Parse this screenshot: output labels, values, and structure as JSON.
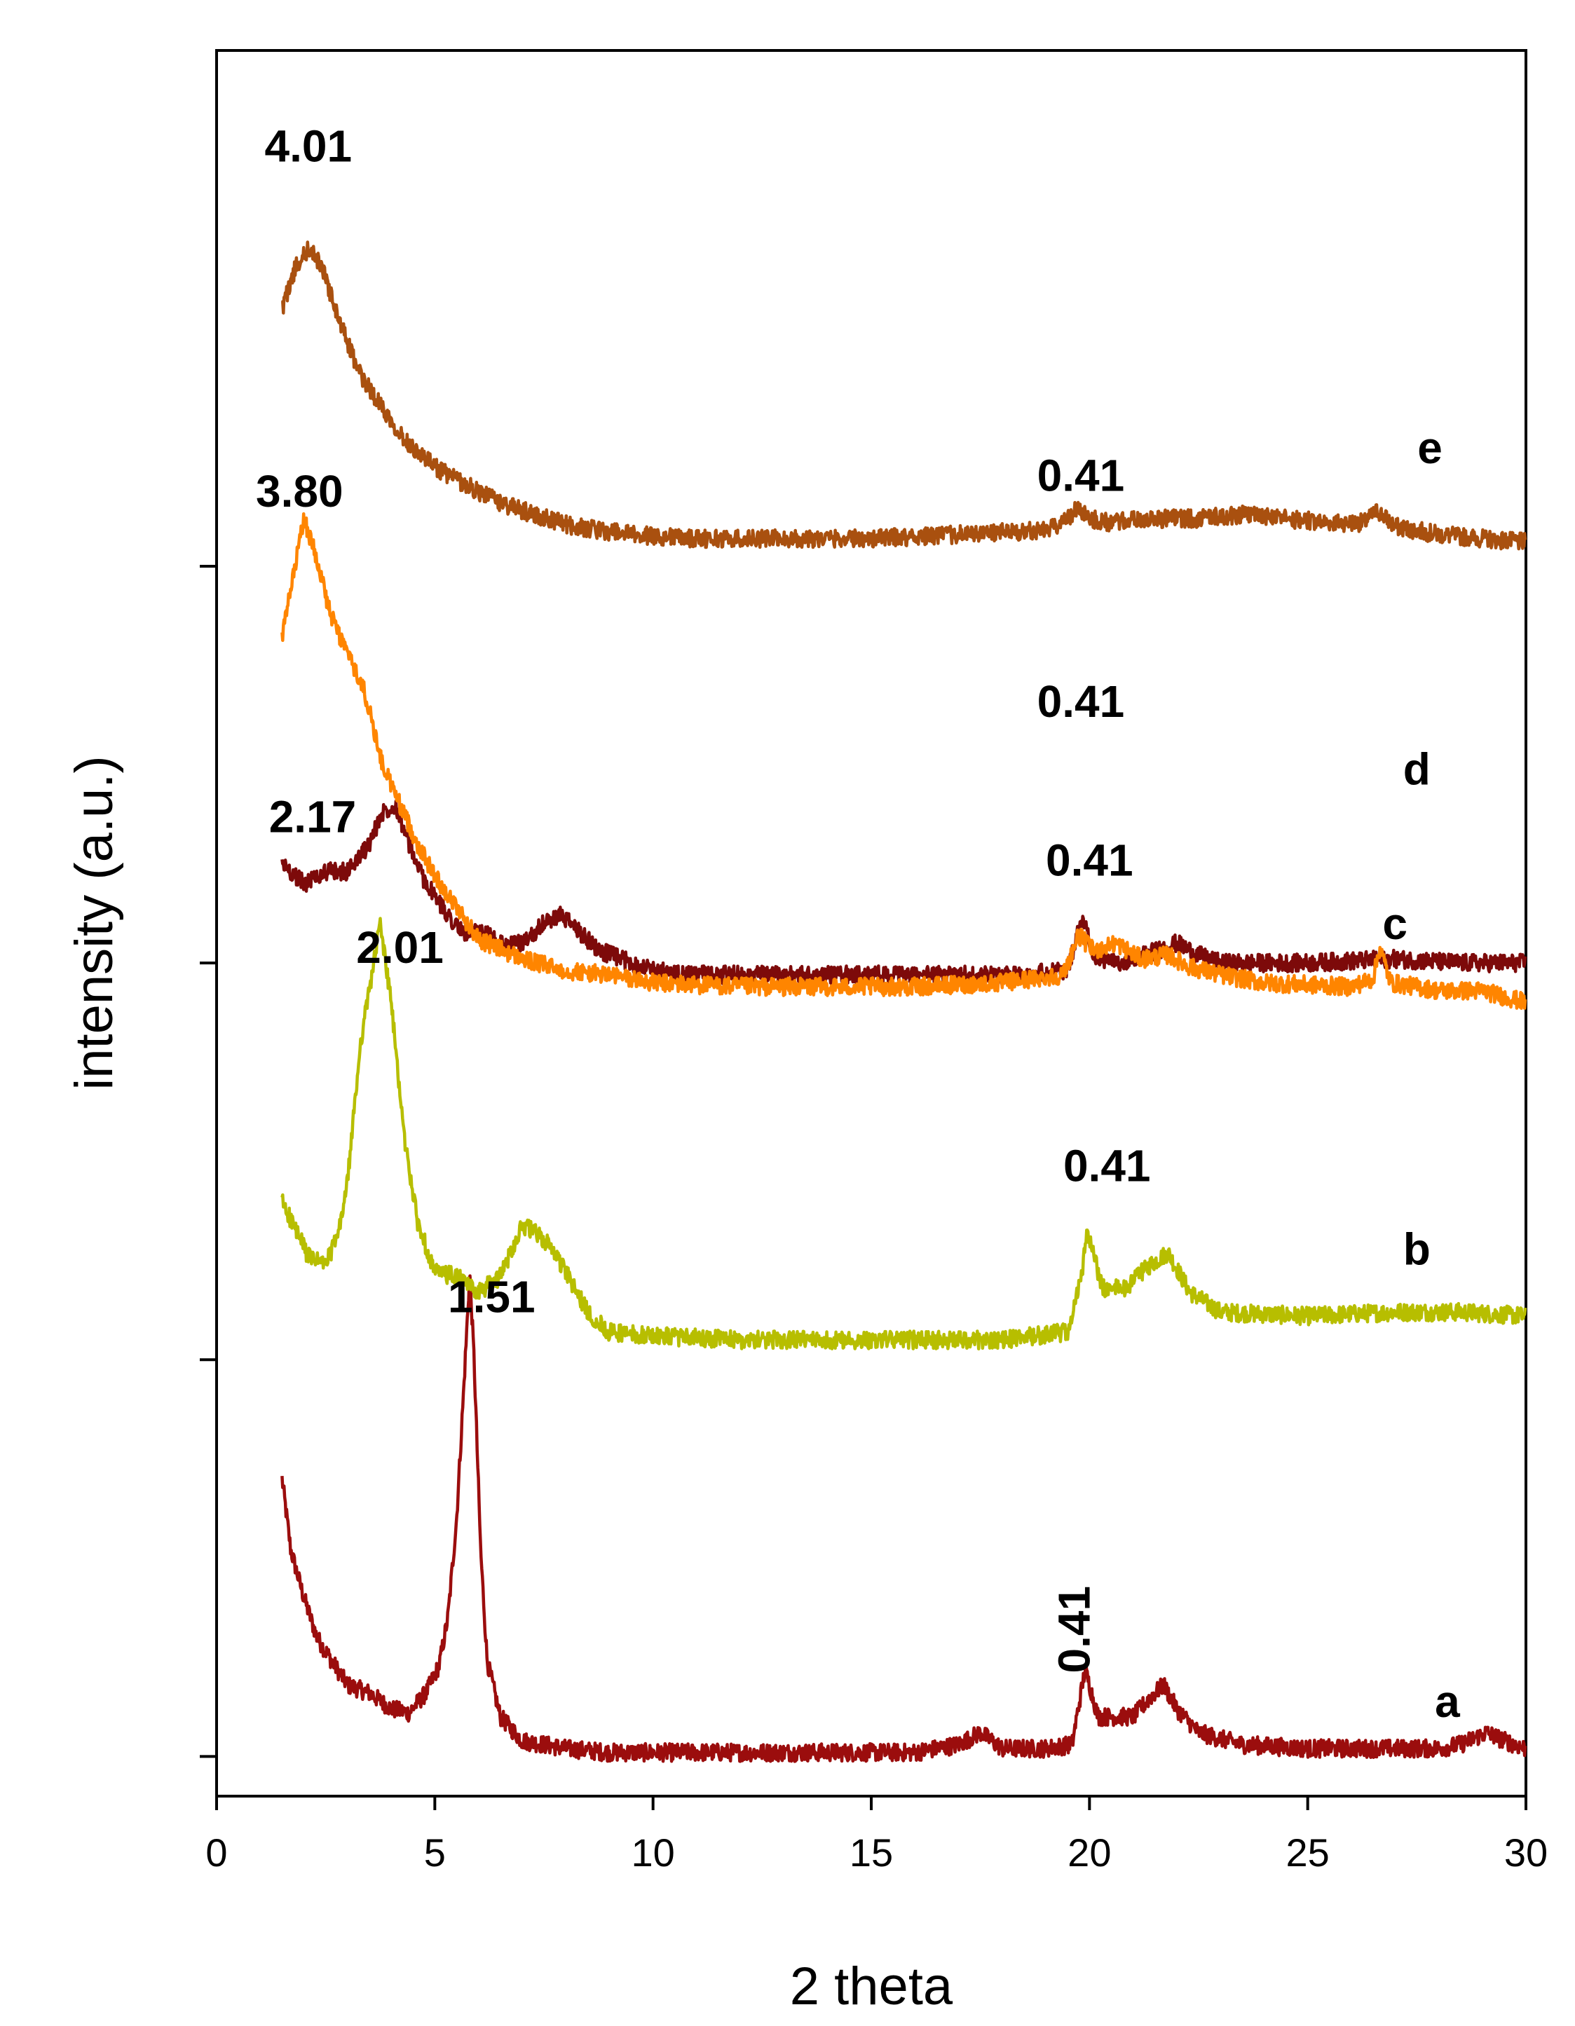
{
  "chart_data": {
    "type": "line",
    "title": "",
    "xlabel": "2 theta",
    "ylabel": "intensity (a.u.)",
    "xlim": [
      0,
      30
    ],
    "ylim": [
      0,
      4.4
    ],
    "xticks": [
      0,
      5,
      10,
      15,
      20,
      25,
      30
    ],
    "xtick_labels": [
      "0",
      "5",
      "10",
      "15",
      "20",
      "25",
      "30"
    ],
    "yticks": [
      0.1,
      1.1,
      2.1,
      3.1
    ],
    "grid": false,
    "legend": "none",
    "series": [
      {
        "name": "a",
        "color": "#9b0d0d",
        "x": [
          1.5,
          1.7,
          2.0,
          2.3,
          2.7,
          3.0,
          3.5,
          4.0,
          4.4,
          4.8,
          5.1,
          5.3,
          5.5,
          5.65,
          5.8,
          5.9,
          6.05,
          6.2,
          6.5,
          7.0,
          8,
          9,
          10,
          12,
          14,
          16,
          17,
          17.5,
          18,
          19,
          19.6,
          19.9,
          20.2,
          20.6,
          21.0,
          21.4,
          21.7,
          22.0,
          22.5,
          23.5,
          25,
          27,
          28,
          28.5,
          29.1,
          29.5,
          30
        ],
        "y": [
          0.8,
          0.62,
          0.5,
          0.4,
          0.33,
          0.28,
          0.26,
          0.22,
          0.21,
          0.26,
          0.33,
          0.45,
          0.7,
          1.0,
          1.32,
          1.1,
          0.62,
          0.34,
          0.2,
          0.14,
          0.12,
          0.11,
          0.11,
          0.11,
          0.11,
          0.11,
          0.13,
          0.16,
          0.12,
          0.12,
          0.13,
          0.32,
          0.2,
          0.2,
          0.2,
          0.25,
          0.28,
          0.22,
          0.16,
          0.13,
          0.12,
          0.12,
          0.12,
          0.13,
          0.16,
          0.14,
          0.12
        ]
      },
      {
        "name": "b",
        "color": "#b7be00",
        "x": [
          1.5,
          1.8,
          2.1,
          2.5,
          2.8,
          3.0,
          3.3,
          3.6,
          3.75,
          4.0,
          4.3,
          4.6,
          5.0,
          5.5,
          6.0,
          6.5,
          7.0,
          7.3,
          7.7,
          8.1,
          8.5,
          9,
          10,
          12,
          14,
          16,
          18,
          19.5,
          19.8,
          19.95,
          20.3,
          20.8,
          21.4,
          21.8,
          22.3,
          23,
          25,
          27,
          28.5,
          30
        ],
        "y": [
          1.5,
          1.43,
          1.36,
          1.34,
          1.42,
          1.55,
          1.9,
          2.1,
          2.2,
          2.0,
          1.66,
          1.45,
          1.32,
          1.31,
          1.27,
          1.31,
          1.44,
          1.42,
          1.38,
          1.3,
          1.22,
          1.17,
          1.16,
          1.15,
          1.15,
          1.15,
          1.15,
          1.17,
          1.3,
          1.42,
          1.28,
          1.28,
          1.34,
          1.37,
          1.27,
          1.22,
          1.21,
          1.22,
          1.22,
          1.21
        ]
      },
      {
        "name": "c",
        "color": "#7d0a0a",
        "x": [
          1.5,
          2.0,
          2.5,
          3.0,
          3.5,
          3.8,
          4.1,
          4.4,
          4.7,
          5.1,
          5.6,
          6.2,
          6.6,
          7.0,
          7.5,
          7.9,
          8.3,
          8.8,
          9.5,
          10.5,
          12,
          14,
          16,
          18,
          19.5,
          19.85,
          20.1,
          20.5,
          21,
          21.5,
          22,
          22.5,
          23,
          25,
          27,
          28.5,
          30
        ],
        "y": [
          2.35,
          2.3,
          2.33,
          2.33,
          2.4,
          2.48,
          2.5,
          2.4,
          2.32,
          2.25,
          2.18,
          2.17,
          2.14,
          2.15,
          2.2,
          2.22,
          2.18,
          2.13,
          2.1,
          2.07,
          2.07,
          2.07,
          2.07,
          2.07,
          2.08,
          2.22,
          2.12,
          2.1,
          2.11,
          2.13,
          2.15,
          2.12,
          2.1,
          2.1,
          2.11,
          2.1,
          2.1
        ]
      },
      {
        "name": "d",
        "color": "#ff8500",
        "x": [
          1.5,
          1.8,
          2.0,
          2.3,
          2.6,
          3.0,
          3.4,
          3.8,
          4.2,
          4.6,
          5.0,
          5.5,
          6.0,
          7.0,
          8.0,
          9.0,
          10,
          12,
          14,
          16,
          18,
          19.4,
          19.75,
          20.1,
          20.6,
          21.2,
          21.8,
          22.3,
          23,
          24,
          26,
          26.5,
          26.65,
          26.9,
          27.5,
          28,
          29,
          30
        ],
        "y": [
          2.92,
          3.1,
          3.22,
          3.12,
          2.98,
          2.88,
          2.78,
          2.6,
          2.5,
          2.4,
          2.32,
          2.24,
          2.16,
          2.11,
          2.08,
          2.07,
          2.05,
          2.04,
          2.04,
          2.04,
          2.05,
          2.07,
          2.17,
          2.13,
          2.15,
          2.11,
          2.12,
          2.09,
          2.07,
          2.05,
          2.04,
          2.06,
          2.14,
          2.05,
          2.04,
          2.03,
          2.03,
          2.0
        ]
      },
      {
        "name": "e",
        "color": "#a9500f",
        "x": [
          1.5,
          1.8,
          2.1,
          2.4,
          2.8,
          3.3,
          3.8,
          4.3,
          5.0,
          5.8,
          6.5,
          7.3,
          8.2,
          9.5,
          11,
          13,
          15,
          17,
          19,
          19.5,
          19.75,
          20.0,
          20.5,
          21.5,
          22.5,
          23.5,
          24.5,
          25.5,
          26.3,
          26.6,
          27,
          28,
          29,
          30
        ],
        "y": [
          3.75,
          3.85,
          3.9,
          3.86,
          3.72,
          3.58,
          3.5,
          3.42,
          3.35,
          3.3,
          3.26,
          3.23,
          3.2,
          3.18,
          3.17,
          3.17,
          3.17,
          3.18,
          3.19,
          3.22,
          3.25,
          3.22,
          3.21,
          3.22,
          3.22,
          3.23,
          3.22,
          3.21,
          3.21,
          3.24,
          3.2,
          3.18,
          3.17,
          3.16
        ]
      }
    ],
    "annotations": [
      {
        "text": "1.51",
        "x": 6.3,
        "y": 1.22
      },
      {
        "text": "0.41",
        "x": 20.0,
        "y": 0.42,
        "rotation": -90
      },
      {
        "text": "a",
        "x": 28.2,
        "y": 0.2
      },
      {
        "text": "2.01",
        "x": 4.2,
        "y": 2.1
      },
      {
        "text": "0.41",
        "x": 20.4,
        "y": 1.55
      },
      {
        "text": "b",
        "x": 27.5,
        "y": 1.34
      },
      {
        "text": "2.17",
        "x": 2.2,
        "y": 2.43
      },
      {
        "text": "0.41",
        "x": 20.0,
        "y": 2.32
      },
      {
        "text": "c",
        "x": 27.0,
        "y": 2.16
      },
      {
        "text": "3.80",
        "x": 1.9,
        "y": 3.25
      },
      {
        "text": "0.41",
        "x": 19.8,
        "y": 2.72
      },
      {
        "text": "d",
        "x": 27.5,
        "y": 2.55
      },
      {
        "text": "4.01",
        "x": 2.1,
        "y": 4.12
      },
      {
        "text": "0.41",
        "x": 19.8,
        "y": 3.29
      },
      {
        "text": "e",
        "x": 27.8,
        "y": 3.36
      }
    ]
  }
}
